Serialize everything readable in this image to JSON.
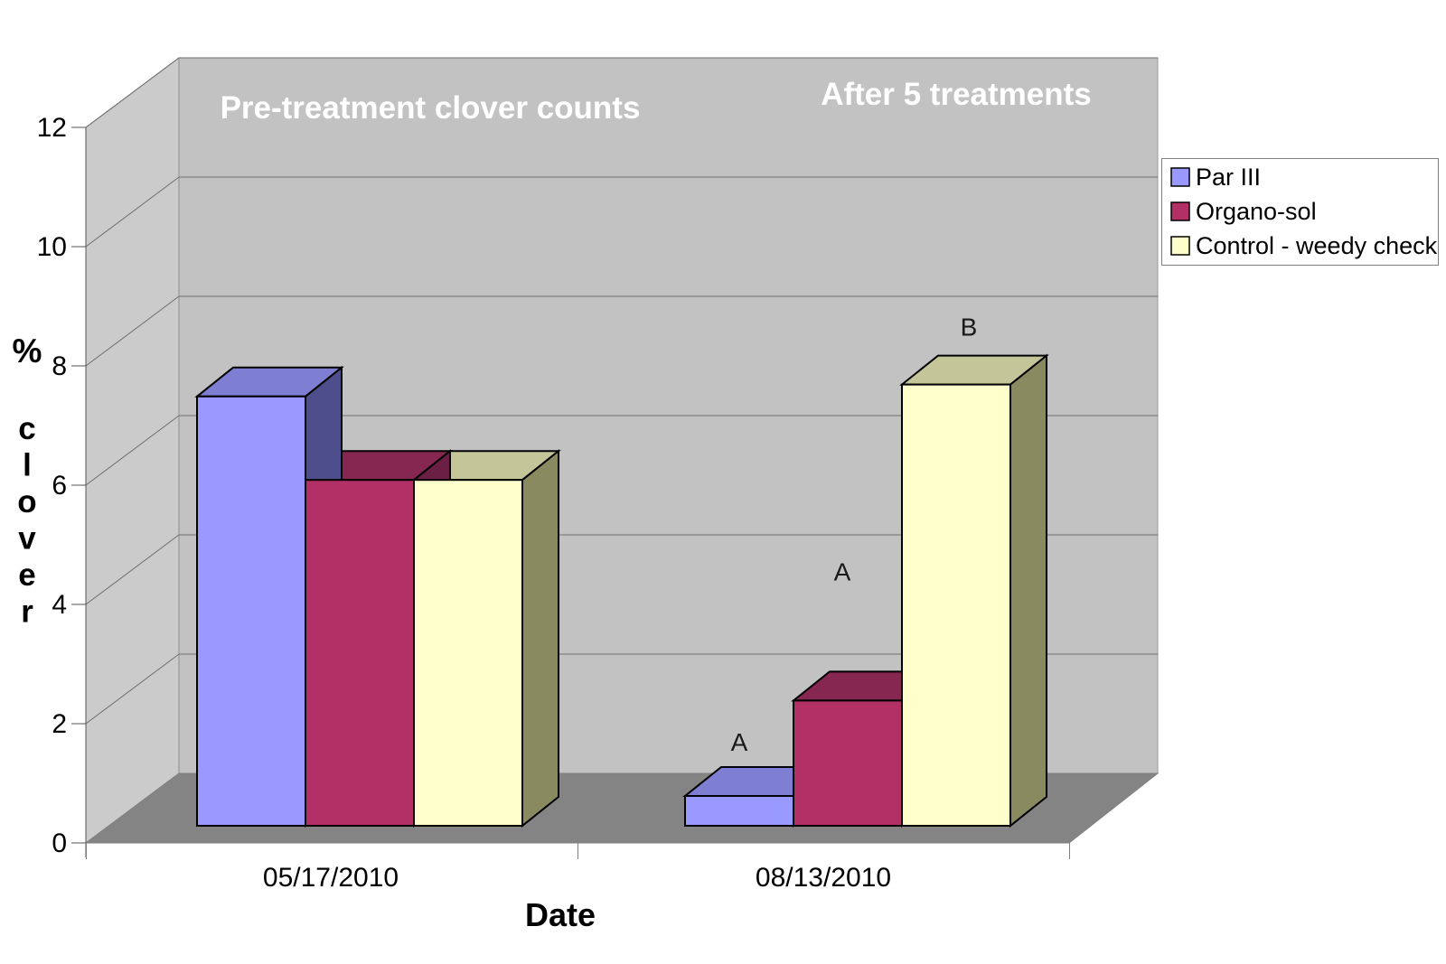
{
  "chart_data": {
    "type": "bar",
    "projection": "3d-column",
    "title": "",
    "categories": [
      "05/17/2010",
      "08/13/2010"
    ],
    "series": [
      {
        "name": "Par III",
        "values": [
          7.2,
          0.5
        ],
        "color": "#9999FF",
        "top_color": "#7E7ED2",
        "side_color": "#4E4E8C"
      },
      {
        "name": "Organo-sol",
        "values": [
          5.8,
          2.1
        ],
        "color": "#B23066",
        "top_color": "#862752",
        "side_color": "#6B1F44"
      },
      {
        "name": "Control - weedy check",
        "values": [
          5.8,
          7.4
        ],
        "color": "#FFFFCC",
        "top_color": "#C5C59A",
        "side_color": "#8A8A60"
      }
    ],
    "xlabel": "Date",
    "ylabel": "% clover",
    "ylim": [
      0,
      12
    ],
    "y_ticks": [
      0,
      2,
      4,
      6,
      8,
      10,
      12
    ],
    "grid": true,
    "legend_position": "right",
    "panel_titles": [
      "Pre-treatment clover counts",
      "After 5 treatments"
    ],
    "bar_letters": [
      {
        "category_index": 1,
        "series_index": 0,
        "text": "A"
      },
      {
        "category_index": 1,
        "series_index": 1,
        "text": "A"
      },
      {
        "category_index": 1,
        "series_index": 2,
        "text": "B"
      }
    ],
    "colors": {
      "back_wall": "#C2C2C2",
      "left_wall": "#CBCBCB",
      "floor": "#848484",
      "gridline": "#6E6E6E",
      "axis_line": "#555555",
      "panel_title_text": "#FFFFFF",
      "tick_text": "#000000"
    }
  }
}
